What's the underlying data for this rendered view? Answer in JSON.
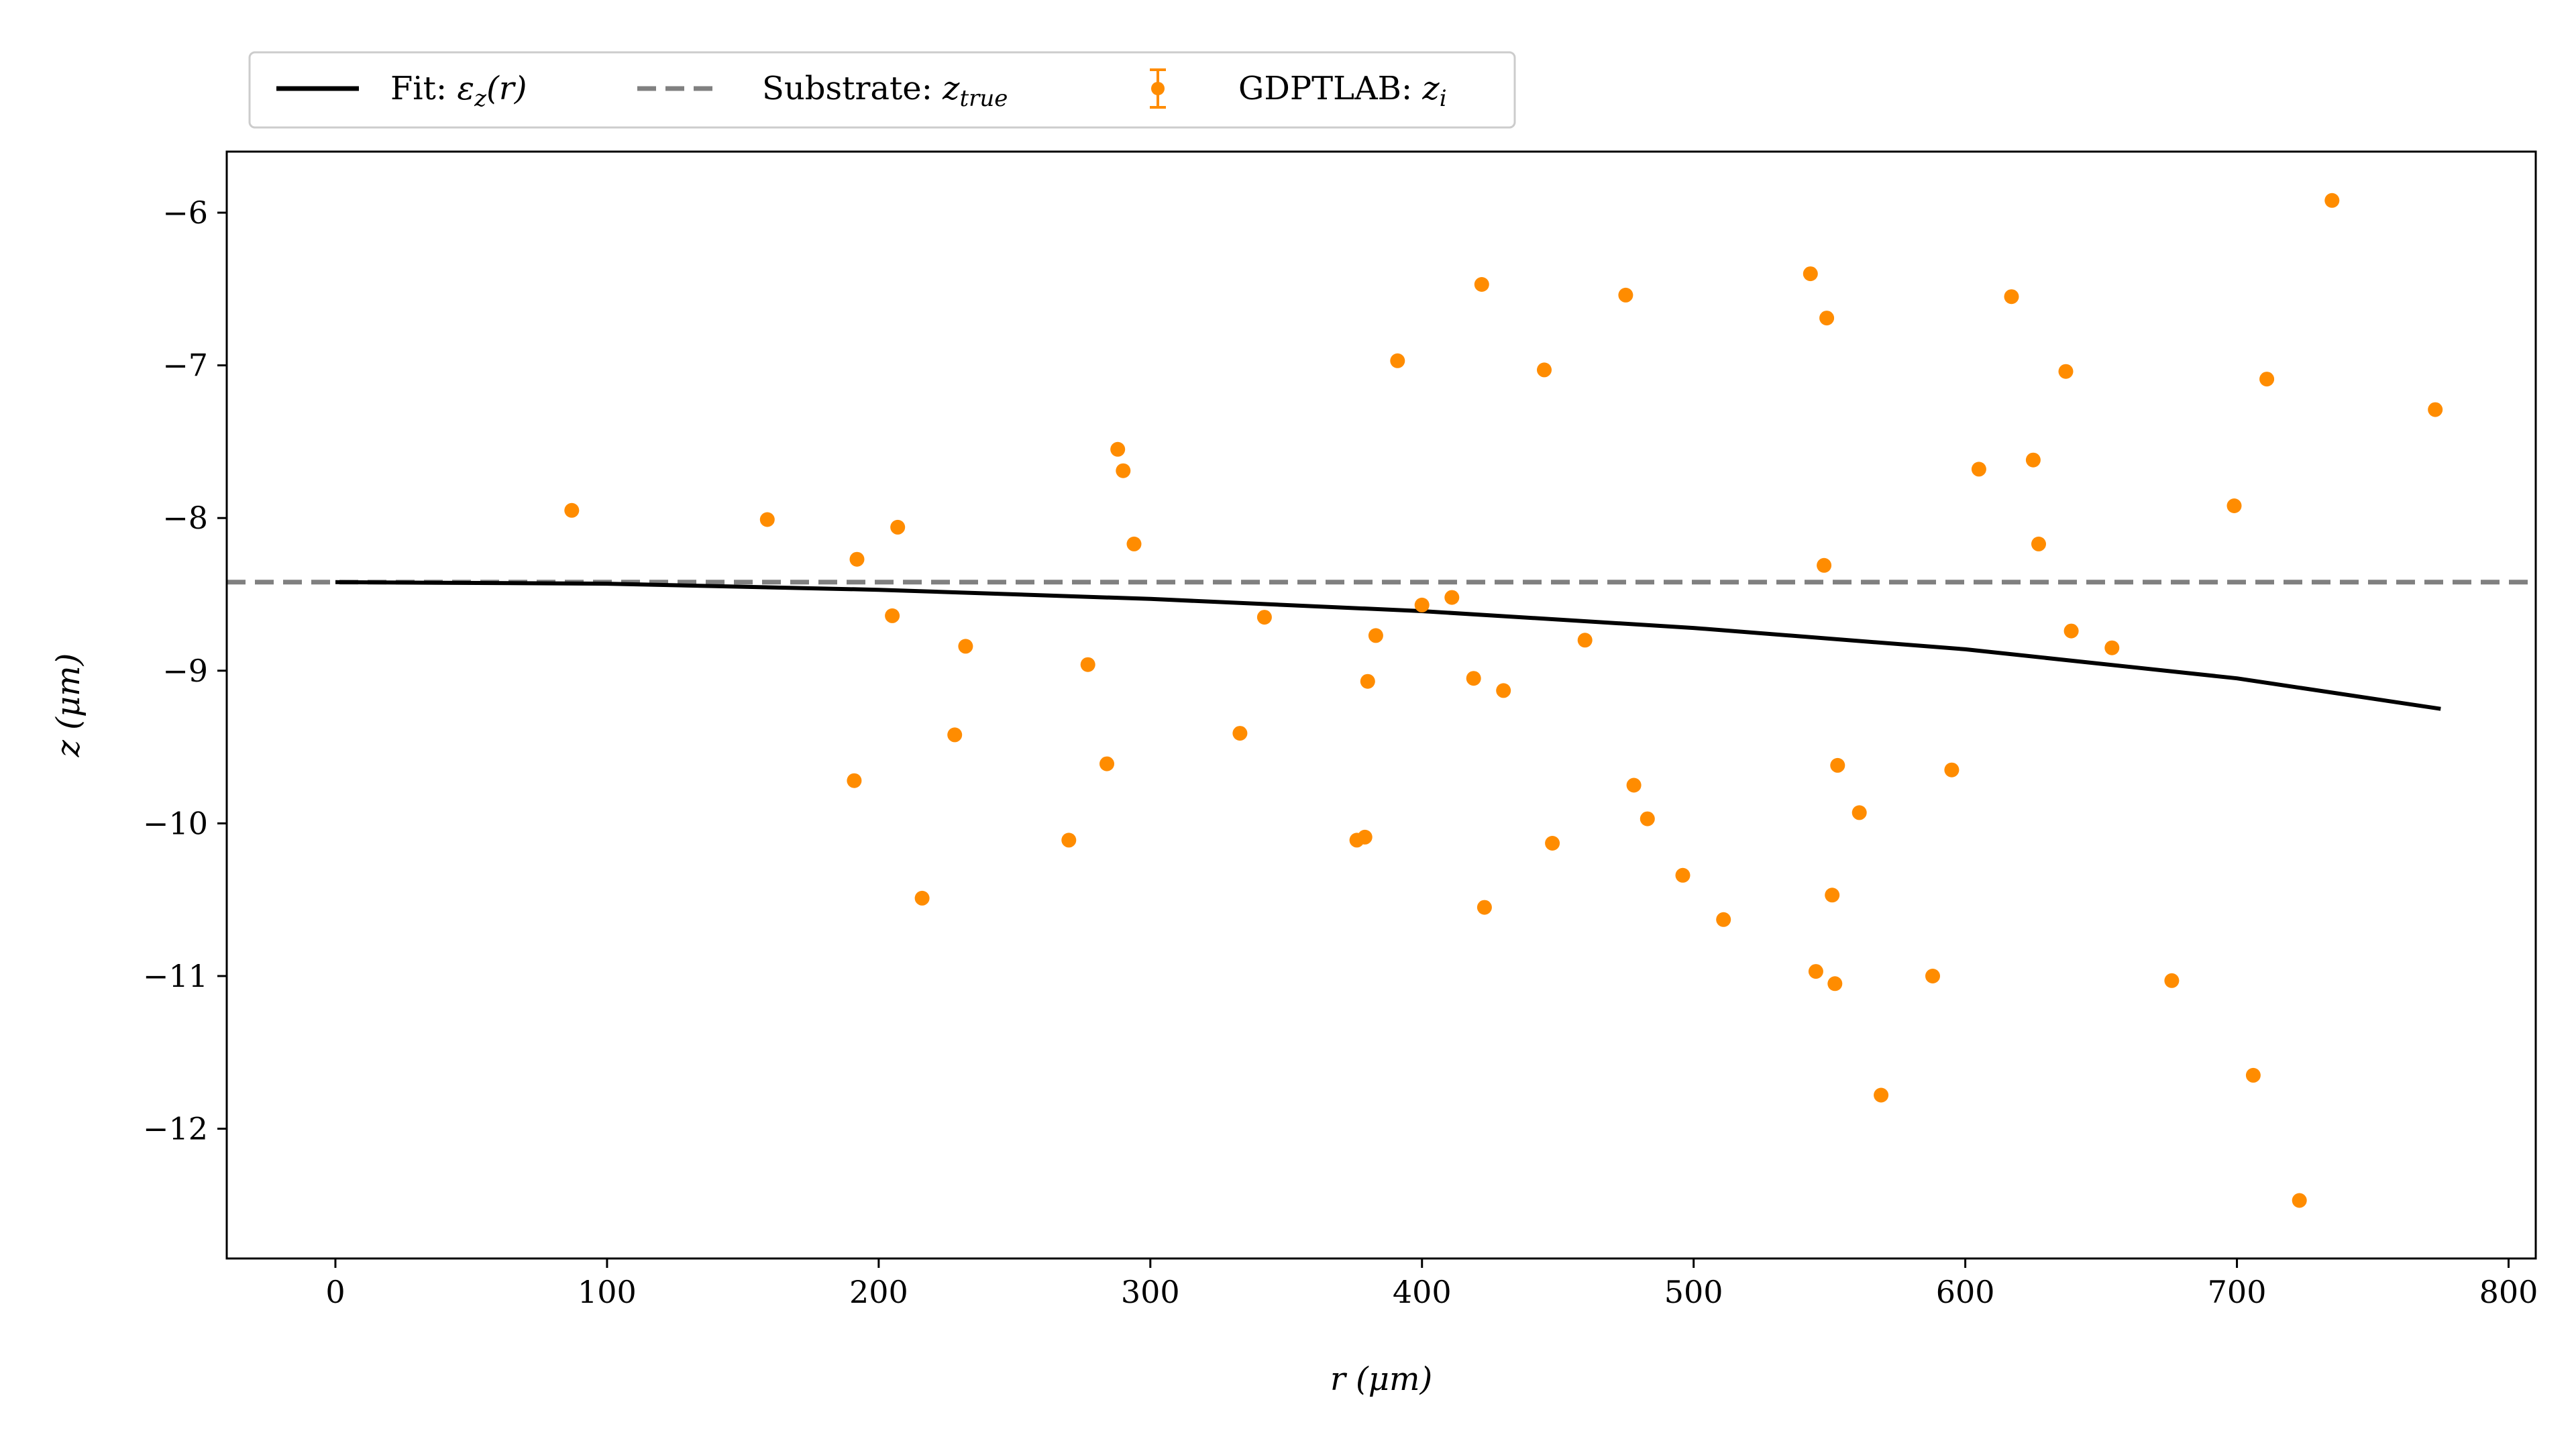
{
  "chart_data": {
    "type": "scatter",
    "xlabel": "r (μm)",
    "ylabel": "z (μm)",
    "xlim": [
      -40,
      810
    ],
    "ylim": [
      -12.85,
      -5.6
    ],
    "x_ticks": [
      0,
      100,
      200,
      300,
      400,
      500,
      600,
      700,
      800
    ],
    "x_tick_labels": [
      "0",
      "100",
      "200",
      "300",
      "400",
      "500",
      "600",
      "700",
      "800"
    ],
    "y_ticks": [
      -6,
      -7,
      -8,
      -9,
      -10,
      -11,
      -12
    ],
    "y_tick_labels": [
      "−6",
      "−7",
      "−8",
      "−9",
      "−10",
      "−11",
      "−12"
    ],
    "grid": false,
    "legend_position": "top-left-outside",
    "legend": {
      "fit": {
        "prefix": "Fit: ",
        "symbol": "ε",
        "sub": "z",
        "suffix": "(r)"
      },
      "substrate": {
        "prefix": "Substrate: ",
        "symbol": "z",
        "sub": "true"
      },
      "points": {
        "prefix": "GDPTLAB: ",
        "symbol": "z",
        "sub": "i"
      }
    },
    "colors": {
      "fit": "#000000",
      "substrate": "#808080",
      "points": "#ff8c00"
    },
    "substrate_z": -8.42,
    "fit_curve": {
      "x": [
        0,
        100,
        200,
        300,
        400,
        500,
        600,
        700,
        775
      ],
      "y": [
        -8.42,
        -8.43,
        -8.47,
        -8.53,
        -8.61,
        -8.72,
        -8.86,
        -9.05,
        -9.25
      ]
    },
    "points": [
      [
        87,
        -7.95
      ],
      [
        159,
        -8.01
      ],
      [
        192,
        -8.27
      ],
      [
        191,
        -9.72
      ],
      [
        205,
        -8.64
      ],
      [
        207,
        -8.06
      ],
      [
        216,
        -10.49
      ],
      [
        228,
        -9.42
      ],
      [
        232,
        -8.84
      ],
      [
        270,
        -10.11
      ],
      [
        277,
        -8.96
      ],
      [
        284,
        -9.61
      ],
      [
        288,
        -7.55
      ],
      [
        290,
        -7.69
      ],
      [
        294,
        -8.17
      ],
      [
        333,
        -9.41
      ],
      [
        342,
        -8.65
      ],
      [
        376,
        -10.11
      ],
      [
        379,
        -10.09
      ],
      [
        380,
        -9.07
      ],
      [
        383,
        -8.77
      ],
      [
        391,
        -6.97
      ],
      [
        400,
        -8.57
      ],
      [
        411,
        -8.52
      ],
      [
        419,
        -9.05
      ],
      [
        422,
        -6.47
      ],
      [
        423,
        -10.55
      ],
      [
        430,
        -9.13
      ],
      [
        445,
        -7.03
      ],
      [
        448,
        -10.13
      ],
      [
        460,
        -8.8
      ],
      [
        475,
        -6.54
      ],
      [
        478,
        -9.75
      ],
      [
        483,
        -9.97
      ],
      [
        496,
        -10.34
      ],
      [
        511,
        -10.63
      ],
      [
        543,
        -6.4
      ],
      [
        545,
        -10.97
      ],
      [
        548,
        -8.31
      ],
      [
        549,
        -6.69
      ],
      [
        551,
        -10.47
      ],
      [
        552,
        -11.05
      ],
      [
        553,
        -9.62
      ],
      [
        561,
        -9.93
      ],
      [
        569,
        -11.78
      ],
      [
        588,
        -11.0
      ],
      [
        595,
        -9.65
      ],
      [
        605,
        -7.68
      ],
      [
        617,
        -6.55
      ],
      [
        625,
        -7.62
      ],
      [
        627,
        -8.17
      ],
      [
        637,
        -7.04
      ],
      [
        639,
        -8.74
      ],
      [
        654,
        -8.85
      ],
      [
        676,
        -11.03
      ],
      [
        699,
        -7.92
      ],
      [
        706,
        -11.65
      ],
      [
        711,
        -7.09
      ],
      [
        723,
        -12.47
      ],
      [
        735,
        -5.92
      ],
      [
        773,
        -7.29
      ]
    ]
  }
}
